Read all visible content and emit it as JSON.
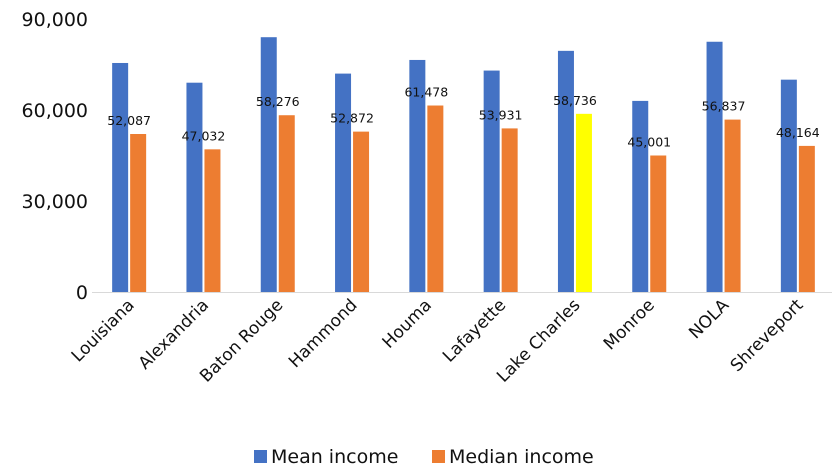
{
  "chart_data": {
    "type": "bar",
    "title": "",
    "xlabel": "",
    "ylabel": "",
    "ylim": [
      0,
      90000
    ],
    "yticks": [
      0,
      30000,
      60000,
      90000
    ],
    "ytick_labels": [
      "0",
      "30,000",
      "60,000",
      "90,000"
    ],
    "grid": false,
    "legend_position": "bottom",
    "categories": [
      "Louisiana",
      "Alexandria",
      "Baton Rouge",
      "Hammond",
      "Houma",
      "Lafayette",
      "Lake Charles",
      "Monroe",
      "NOLA",
      "Shreveport"
    ],
    "series": [
      {
        "name": "Mean income",
        "color": "#4472C4",
        "values": [
          75500,
          69000,
          84000,
          72000,
          76500,
          73000,
          79500,
          63000,
          82500,
          70000
        ],
        "labels": null
      },
      {
        "name": "Median income",
        "color": "#ED7D31",
        "highlight": {
          "index": 6,
          "color": "#FFFF00"
        },
        "values": [
          52087,
          47032,
          58276,
          52872,
          61478,
          53931,
          58736,
          45001,
          56837,
          48164
        ],
        "labels": [
          "52,087",
          "47,032",
          "58,276",
          "52,872",
          "61,478",
          "53,931",
          "58,736",
          "45,001",
          "56,837",
          "48,164"
        ]
      }
    ]
  }
}
